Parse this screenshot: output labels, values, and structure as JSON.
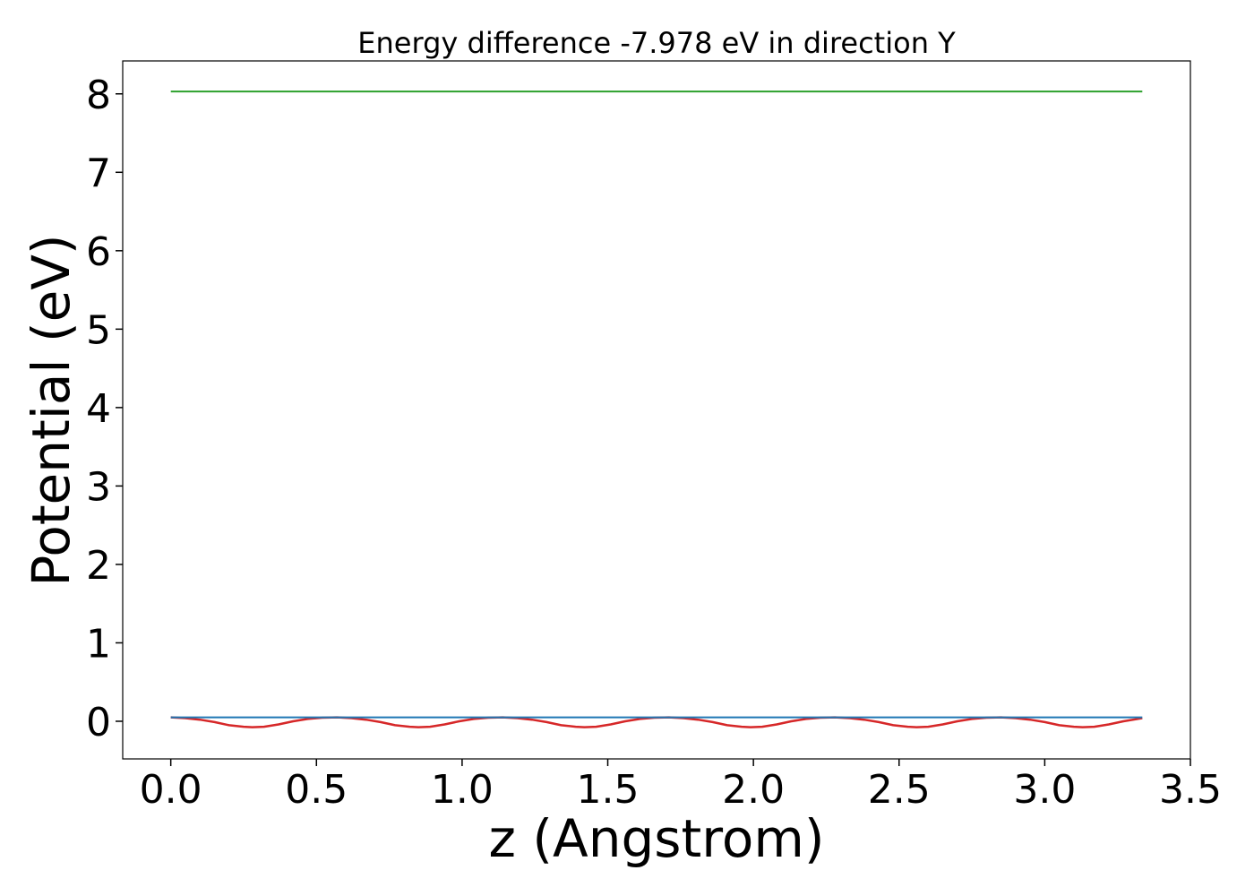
{
  "chart_data": {
    "type": "line",
    "title": "Energy difference -7.978 eV in direction Y",
    "xlabel": "z (Angstrom)",
    "ylabel": "Potential (eV)",
    "xlim": [
      -0.165,
      3.5
    ],
    "ylim": [
      -0.48,
      8.42
    ],
    "xticks": [
      0.0,
      0.5,
      1.0,
      1.5,
      2.0,
      2.5,
      3.0,
      3.5
    ],
    "xtick_labels": [
      "0.0",
      "0.5",
      "1.0",
      "1.5",
      "2.0",
      "2.5",
      "3.0",
      "3.5"
    ],
    "yticks": [
      0,
      1,
      2,
      3,
      4,
      5,
      6,
      7,
      8
    ],
    "ytick_labels": [
      "0",
      "1",
      "2",
      "3",
      "4",
      "5",
      "6",
      "7",
      "8"
    ],
    "grid": false,
    "legend": "none",
    "series": [
      {
        "color": "#2ca02c",
        "x": [
          0.0,
          3.335
        ],
        "y": [
          8.03,
          8.03
        ]
      },
      {
        "color": "#d62728",
        "x": [
          0.0,
          0.05,
          0.1,
          0.15,
          0.2,
          0.25,
          0.28,
          0.32,
          0.37,
          0.42,
          0.47,
          0.52,
          0.57,
          0.62,
          0.67,
          0.72,
          0.77,
          0.82,
          0.85,
          0.89,
          0.94,
          0.99,
          1.04,
          1.09,
          1.14,
          1.19,
          1.24,
          1.29,
          1.34,
          1.39,
          1.42,
          1.46,
          1.51,
          1.56,
          1.61,
          1.66,
          1.71,
          1.76,
          1.81,
          1.86,
          1.91,
          1.96,
          1.99,
          2.03,
          2.08,
          2.13,
          2.18,
          2.23,
          2.28,
          2.33,
          2.38,
          2.43,
          2.48,
          2.53,
          2.56,
          2.6,
          2.65,
          2.7,
          2.75,
          2.8,
          2.85,
          2.9,
          2.95,
          3.0,
          3.05,
          3.1,
          3.13,
          3.17,
          3.22,
          3.27,
          3.335
        ],
        "y": [
          0.05,
          0.04,
          0.02,
          -0.01,
          -0.05,
          -0.07,
          -0.075,
          -0.07,
          -0.04,
          0.0,
          0.03,
          0.045,
          0.05,
          0.04,
          0.02,
          -0.01,
          -0.05,
          -0.07,
          -0.075,
          -0.07,
          -0.04,
          0.0,
          0.03,
          0.045,
          0.05,
          0.04,
          0.02,
          -0.01,
          -0.05,
          -0.07,
          -0.075,
          -0.07,
          -0.04,
          0.0,
          0.03,
          0.045,
          0.05,
          0.04,
          0.02,
          -0.01,
          -0.05,
          -0.07,
          -0.075,
          -0.07,
          -0.04,
          0.0,
          0.03,
          0.045,
          0.05,
          0.04,
          0.02,
          -0.01,
          -0.05,
          -0.07,
          -0.075,
          -0.07,
          -0.04,
          0.0,
          0.03,
          0.045,
          0.05,
          0.04,
          0.02,
          -0.01,
          -0.05,
          -0.07,
          -0.075,
          -0.07,
          -0.04,
          0.0,
          0.04
        ]
      },
      {
        "color": "#1f77b4",
        "x": [
          0.0,
          3.335
        ],
        "y": [
          0.05,
          0.05
        ]
      }
    ]
  }
}
